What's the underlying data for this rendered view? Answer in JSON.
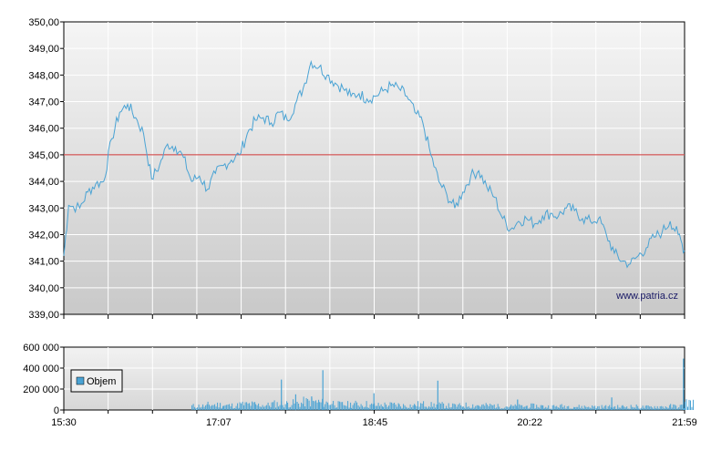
{
  "chart_data": [
    {
      "type": "line",
      "title": "",
      "xlabel": "",
      "ylabel": "",
      "ylim": [
        339,
        350
      ],
      "yticks": [
        "339,00",
        "340,00",
        "341,00",
        "342,00",
        "343,00",
        "344,00",
        "345,00",
        "346,00",
        "347,00",
        "348,00",
        "349,00",
        "350,00"
      ],
      "grid": true,
      "reference_line": {
        "value": 345.0,
        "color": "#cc3333"
      },
      "watermark": "www.patria.cz",
      "series": [
        {
          "color": "#4aa3d4",
          "points": [
            [
              "15:30",
              341.2
            ],
            [
              "15:33",
              343.1
            ],
            [
              "15:40",
              343.0
            ],
            [
              "15:45",
              343.6
            ],
            [
              "15:50",
              343.9
            ],
            [
              "15:55",
              344.0
            ],
            [
              "16:00",
              345.6
            ],
            [
              "16:05",
              346.6
            ],
            [
              "16:10",
              346.9
            ],
            [
              "16:15",
              346.4
            ],
            [
              "16:20",
              345.8
            ],
            [
              "16:25",
              344.1
            ],
            [
              "16:30",
              344.6
            ],
            [
              "16:35",
              345.4
            ],
            [
              "16:40",
              345.3
            ],
            [
              "16:45",
              344.9
            ],
            [
              "16:50",
              344.0
            ],
            [
              "16:55",
              344.2
            ],
            [
              "17:00",
              343.7
            ],
            [
              "17:05",
              344.3
            ],
            [
              "17:10",
              344.6
            ],
            [
              "17:15",
              344.8
            ],
            [
              "17:20",
              345.0
            ],
            [
              "17:25",
              345.8
            ],
            [
              "17:30",
              346.3
            ],
            [
              "17:35",
              346.4
            ],
            [
              "17:40",
              346.2
            ],
            [
              "17:45",
              346.6
            ],
            [
              "17:50",
              346.3
            ],
            [
              "17:55",
              346.9
            ],
            [
              "18:00",
              347.5
            ],
            [
              "18:05",
              348.5
            ],
            [
              "18:10",
              348.3
            ],
            [
              "18:15",
              348.0
            ],
            [
              "18:20",
              347.7
            ],
            [
              "18:25",
              347.5
            ],
            [
              "18:30",
              347.2
            ],
            [
              "18:35",
              347.3
            ],
            [
              "18:40",
              347.1
            ],
            [
              "18:45",
              347.2
            ],
            [
              "18:50",
              347.4
            ],
            [
              "18:55",
              347.6
            ],
            [
              "19:00",
              347.5
            ],
            [
              "19:05",
              347.2
            ],
            [
              "19:10",
              346.6
            ],
            [
              "19:15",
              346.2
            ],
            [
              "19:20",
              345.0
            ],
            [
              "19:25",
              344.0
            ],
            [
              "19:30",
              343.5
            ],
            [
              "19:35",
              343.0
            ],
            [
              "19:40",
              343.6
            ],
            [
              "19:45",
              344.2
            ],
            [
              "19:50",
              344.4
            ],
            [
              "19:55",
              343.8
            ],
            [
              "20:00",
              343.4
            ],
            [
              "20:05",
              342.6
            ],
            [
              "20:10",
              342.2
            ],
            [
              "20:15",
              342.5
            ],
            [
              "20:20",
              342.6
            ],
            [
              "20:25",
              342.4
            ],
            [
              "20:30",
              342.7
            ],
            [
              "20:35",
              342.8
            ],
            [
              "20:40",
              342.7
            ],
            [
              "20:45",
              343.0
            ],
            [
              "20:50",
              342.9
            ],
            [
              "20:55",
              342.6
            ],
            [
              "21:00",
              342.5
            ],
            [
              "21:05",
              342.6
            ],
            [
              "21:10",
              342.0
            ],
            [
              "21:15",
              341.3
            ],
            [
              "21:20",
              341.0
            ],
            [
              "21:25",
              340.9
            ],
            [
              "21:30",
              341.2
            ],
            [
              "21:35",
              341.5
            ],
            [
              "21:40",
              341.9
            ],
            [
              "21:45",
              342.1
            ],
            [
              "21:50",
              342.5
            ],
            [
              "21:55",
              342.0
            ],
            [
              "21:59",
              341.4
            ]
          ]
        }
      ]
    },
    {
      "type": "bar",
      "title": "",
      "ylim": [
        0,
        600000
      ],
      "yticks": [
        "0",
        "200 000",
        "400 000",
        "600 000"
      ],
      "xticks": [
        "15:30",
        "17:07",
        "18:45",
        "20:22",
        "21:59"
      ],
      "legend": {
        "label": "Objem",
        "color": "#4aa3d4",
        "placement": "left"
      },
      "series": [
        {
          "name": "Objem",
          "color": "#4aa3d4",
          "points": [
            [
              "16:50",
              42000
            ],
            [
              "17:00",
              55000
            ],
            [
              "17:10",
              48000
            ],
            [
              "17:20",
              60000
            ],
            [
              "17:30",
              52000
            ],
            [
              "17:40",
              65000
            ],
            [
              "17:50",
              70000
            ],
            [
              "18:00",
              85000
            ],
            [
              "18:10",
              75000
            ],
            [
              "18:20",
              58000
            ],
            [
              "18:30",
              62000
            ],
            [
              "18:40",
              50000
            ],
            [
              "18:50",
              55000
            ],
            [
              "19:00",
              48000
            ],
            [
              "19:10",
              60000
            ],
            [
              "19:20",
              52000
            ],
            [
              "19:30",
              45000
            ],
            [
              "19:40",
              50000
            ],
            [
              "19:50",
              47000
            ],
            [
              "20:00",
              40000
            ],
            [
              "20:10",
              38000
            ],
            [
              "20:20",
              42000
            ],
            [
              "20:30",
              36000
            ],
            [
              "20:40",
              40000
            ],
            [
              "20:50",
              35000
            ],
            [
              "21:00",
              34000
            ],
            [
              "21:10",
              33000
            ],
            [
              "21:20",
              36000
            ],
            [
              "21:30",
              31000
            ],
            [
              "21:40",
              35000
            ],
            [
              "21:50",
              40000
            ],
            [
              "21:59",
              80000
            ]
          ],
          "spikes": [
            [
              "17:46",
              290000
            ],
            [
              "18:12",
              380000
            ],
            [
              "19:24",
              280000
            ],
            [
              "18:44",
              160000
            ],
            [
              "20:14",
              100000
            ],
            [
              "21:13",
              120000
            ],
            [
              "21:58",
              490000
            ],
            [
              "17:55",
              150000
            ],
            [
              "18:05",
              130000
            ]
          ]
        }
      ]
    }
  ]
}
